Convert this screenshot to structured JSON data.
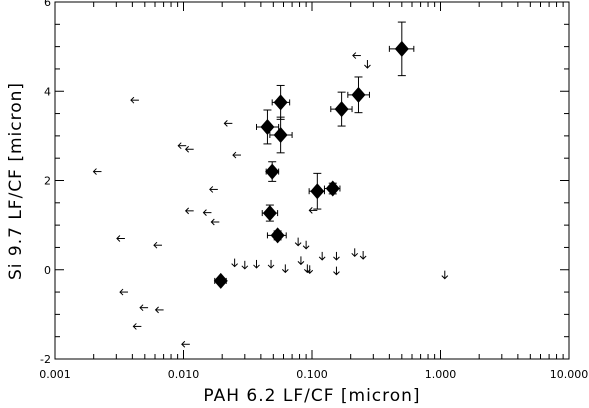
{
  "chart_data": {
    "type": "scatter",
    "xlabel": "PAH 6.2 LF/CF [micron]",
    "ylabel": "Si 9.7 LF/CF [micron]",
    "x_scale": "log",
    "xlim": [
      0.001,
      10.0
    ],
    "ylim": [
      -2,
      6
    ],
    "x_tick_labels": [
      "0.001",
      "0.010",
      "0.100",
      "1.000",
      "10.000"
    ],
    "y_tick_labels": [
      "-2",
      "0",
      "2",
      "4",
      "6"
    ],
    "detections": [
      {
        "x": 0.5,
        "y": 4.95,
        "xerr_lo": 0.1,
        "xerr_hi": 0.12,
        "yerr": 0.6
      },
      {
        "x": 0.23,
        "y": 3.92,
        "xerr_lo": 0.04,
        "xerr_hi": 0.05,
        "yerr": 0.4
      },
      {
        "x": 0.17,
        "y": 3.6,
        "xerr_lo": 0.03,
        "xerr_hi": 0.035,
        "yerr": 0.38
      },
      {
        "x": 0.057,
        "y": 3.75,
        "xerr_lo": 0.008,
        "xerr_hi": 0.01,
        "yerr": 0.38
      },
      {
        "x": 0.045,
        "y": 3.2,
        "xerr_lo": 0.008,
        "xerr_hi": 0.01,
        "yerr": 0.38
      },
      {
        "x": 0.057,
        "y": 3.02,
        "xerr_lo": 0.01,
        "xerr_hi": 0.013,
        "yerr": 0.4
      },
      {
        "x": 0.049,
        "y": 2.2,
        "xerr_lo": 0.005,
        "xerr_hi": 0.006,
        "yerr": 0.22
      },
      {
        "x": 0.11,
        "y": 1.76,
        "xerr_lo": 0.015,
        "xerr_hi": 0.015,
        "yerr": 0.4
      },
      {
        "x": 0.145,
        "y": 1.82,
        "xerr_lo": 0.02,
        "xerr_hi": 0.02,
        "yerr": 0.12
      },
      {
        "x": 0.047,
        "y": 1.27,
        "xerr_lo": 0.006,
        "xerr_hi": 0.007,
        "yerr": 0.18
      },
      {
        "x": 0.054,
        "y": 0.77,
        "xerr_lo": 0.009,
        "xerr_hi": 0.009,
        "yerr": 0.1
      },
      {
        "x": 0.0195,
        "y": -0.25,
        "xerr_lo": 0.002,
        "xerr_hi": 0.002,
        "yerr": 0.05
      }
    ],
    "upper_limits_x": [
      {
        "x": 0.0045,
        "y": 3.8
      },
      {
        "x": 0.0023,
        "y": 2.2
      },
      {
        "x": 0.0035,
        "y": 0.7
      },
      {
        "x": 0.0068,
        "y": 0.55
      },
      {
        "x": 0.0037,
        "y": -0.5
      },
      {
        "x": 0.0053,
        "y": -0.85
      },
      {
        "x": 0.007,
        "y": -0.9
      },
      {
        "x": 0.0047,
        "y": -1.27
      },
      {
        "x": 0.0112,
        "y": -1.67
      },
      {
        "x": 0.0105,
        "y": 2.78
      },
      {
        "x": 0.012,
        "y": 2.7
      },
      {
        "x": 0.024,
        "y": 3.28
      },
      {
        "x": 0.028,
        "y": 2.57
      },
      {
        "x": 0.0185,
        "y": 1.8
      },
      {
        "x": 0.012,
        "y": 1.32
      },
      {
        "x": 0.0165,
        "y": 1.28
      },
      {
        "x": 0.019,
        "y": 1.07
      },
      {
        "x": 0.11,
        "y": 1.33
      },
      {
        "x": 0.24,
        "y": 4.8
      }
    ],
    "upper_limits_y": [
      {
        "x": 0.025,
        "y": 0.25
      },
      {
        "x": 0.03,
        "y": 0.2
      },
      {
        "x": 0.037,
        "y": 0.22
      },
      {
        "x": 0.048,
        "y": 0.22
      },
      {
        "x": 0.062,
        "y": 0.12
      },
      {
        "x": 0.082,
        "y": 0.3
      },
      {
        "x": 0.092,
        "y": 0.12
      },
      {
        "x": 0.096,
        "y": 0.1
      },
      {
        "x": 0.078,
        "y": 0.72
      },
      {
        "x": 0.09,
        "y": 0.65
      },
      {
        "x": 0.12,
        "y": 0.4
      },
      {
        "x": 0.155,
        "y": 0.4
      },
      {
        "x": 0.155,
        "y": 0.07
      },
      {
        "x": 0.215,
        "y": 0.48
      },
      {
        "x": 0.25,
        "y": 0.42
      },
      {
        "x": 1.08,
        "y": -0.02
      },
      {
        "x": 0.27,
        "y": 4.7
      }
    ]
  }
}
